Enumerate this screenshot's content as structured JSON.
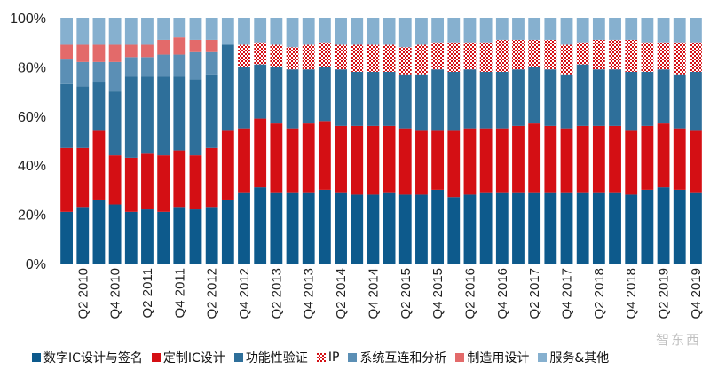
{
  "chart_data": {
    "type": "bar",
    "stacked": true,
    "normalized_percent": true,
    "yticks": [
      "0%",
      "20%",
      "40%",
      "60%",
      "80%",
      "100%"
    ],
    "ylim": [
      0,
      100
    ],
    "grid": false,
    "legend_position": "bottom",
    "categories": [
      "Q1 2010",
      "Q2 2010",
      "Q3 2010",
      "Q4 2010",
      "Q1 2011",
      "Q2 2011",
      "Q3 2011",
      "Q4 2011",
      "Q1 2012",
      "Q2 2012",
      "Q3 2012",
      "Q4 2012",
      "Q1 2013",
      "Q2 2013",
      "Q3 2013",
      "Q4 2013",
      "Q1 2014",
      "Q2 2014",
      "Q3 2014",
      "Q4 2014",
      "Q1 2015",
      "Q2 2015",
      "Q3 2015",
      "Q4 2015",
      "Q1 2016",
      "Q2 2016",
      "Q3 2016",
      "Q4 2016",
      "Q1 2017",
      "Q2 2017",
      "Q3 2017",
      "Q4 2017",
      "Q1 2018",
      "Q2 2018",
      "Q3 2018",
      "Q4 2018",
      "Q1 2019",
      "Q2 2019",
      "Q3 2019",
      "Q4 2019"
    ],
    "x_tick_labels": [
      "Q2 2010",
      "Q4 2010",
      "Q2 2011",
      "Q4 2011",
      "Q2 2012",
      "Q4 2012",
      "Q2 2013",
      "Q4 2013",
      "Q2 2014",
      "Q4 2014",
      "Q2 2015",
      "Q4 2015",
      "Q2 2016",
      "Q4 2016",
      "Q2 2017",
      "Q4 2017",
      "Q2 2018",
      "Q4 2018",
      "Q2 2019",
      "Q4 2019"
    ],
    "series": [
      {
        "name": "数字IC设计与签名",
        "color": "#0d5a8c",
        "pattern": "solid",
        "values": [
          21,
          23,
          26,
          24,
          21,
          22,
          21,
          23,
          22,
          23,
          26,
          29,
          31,
          29,
          29,
          29,
          30,
          29,
          28,
          28,
          29,
          28,
          28,
          30,
          27,
          28,
          29,
          29,
          29,
          29,
          29,
          29,
          29,
          29,
          29,
          28,
          30,
          31,
          30,
          29
        ]
      },
      {
        "name": "定制IC设计",
        "color": "#d40f14",
        "pattern": "solid",
        "values": [
          26,
          24,
          28,
          20,
          22,
          23,
          23,
          23,
          22,
          24,
          28,
          26,
          28,
          28,
          26,
          28,
          28,
          27,
          28,
          28,
          27,
          27,
          26,
          24,
          27,
          27,
          26,
          26,
          27,
          28,
          27,
          26,
          27,
          27,
          27,
          26,
          26,
          26,
          25,
          25
        ]
      },
      {
        "name": "功能性验证",
        "color": "#2e6f9a",
        "pattern": "solid",
        "values": [
          26,
          25,
          20,
          26,
          33,
          31,
          32,
          30,
          31,
          30,
          35,
          25,
          22,
          23,
          24,
          22,
          22,
          23,
          22,
          22,
          22,
          22,
          23,
          25,
          24,
          24,
          23,
          23,
          23,
          23,
          23,
          22,
          25,
          23,
          23,
          24,
          22,
          22,
          22,
          24
        ]
      },
      {
        "name": "IP",
        "color": "#d40f14",
        "pattern": "dots",
        "values": [
          0,
          0,
          0,
          0,
          0,
          0,
          0,
          0,
          0,
          0,
          0,
          9,
          9,
          9,
          9,
          10,
          10,
          10,
          11,
          11,
          11,
          11,
          12,
          11,
          12,
          11,
          12,
          13,
          12,
          11,
          12,
          12,
          9,
          12,
          12,
          13,
          12,
          11,
          13,
          12
        ]
      },
      {
        "name": "系统互连和分析",
        "color": "#5b8fb5",
        "pattern": "solid",
        "values": [
          10,
          10,
          8,
          12,
          8,
          8,
          9,
          9,
          11,
          9,
          0,
          0,
          0,
          0,
          0,
          0,
          0,
          0,
          0,
          0,
          0,
          0,
          0,
          0,
          0,
          0,
          0,
          0,
          0,
          0,
          0,
          0,
          0,
          0,
          0,
          0,
          0,
          0,
          0,
          0
        ]
      },
      {
        "name": "制造用设计",
        "color": "#e36a6a",
        "pattern": "solid",
        "values": [
          6,
          7,
          7,
          7,
          5,
          5,
          6,
          7,
          5,
          5,
          0,
          0,
          0,
          0,
          0,
          0,
          0,
          0,
          0,
          0,
          0,
          0,
          0,
          0,
          0,
          0,
          0,
          0,
          0,
          0,
          0,
          0,
          0,
          0,
          0,
          0,
          0,
          0,
          0,
          0
        ]
      },
      {
        "name": "服务&其他",
        "color": "#86b0cf",
        "pattern": "solid",
        "values": [
          11,
          11,
          11,
          11,
          11,
          11,
          9,
          8,
          9,
          9,
          11,
          11,
          10,
          11,
          12,
          11,
          10,
          11,
          11,
          11,
          11,
          12,
          11,
          10,
          10,
          10,
          10,
          9,
          9,
          9,
          9,
          11,
          10,
          9,
          9,
          9,
          10,
          10,
          10,
          10
        ]
      }
    ]
  },
  "legend": {
    "s1": "数字IC设计与签名",
    "s2": "定制IC设计",
    "s3": "功能性验证",
    "s4": "IP",
    "s5": "系统互连和分析",
    "s6": "制造用设计",
    "s7": "服务&其他"
  },
  "watermark": "智东西"
}
